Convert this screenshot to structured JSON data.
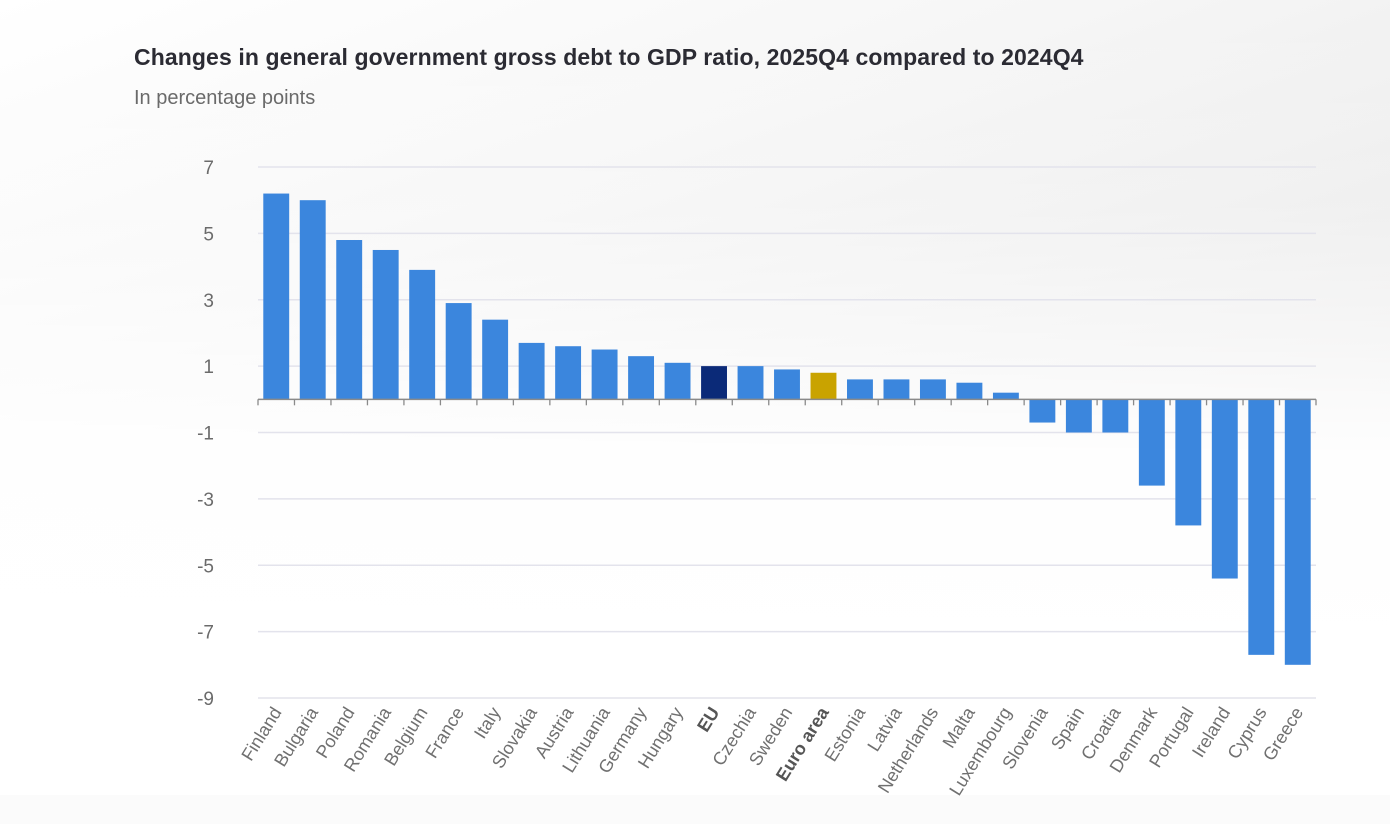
{
  "chart_data": {
    "type": "bar",
    "title": "Changes in general government gross debt to GDP ratio, 2025Q4 compared to 2024Q4",
    "subtitle": "In percentage points",
    "xlabel": "",
    "ylabel": "",
    "ylim": [
      -9,
      7
    ],
    "yticks": [
      7,
      5,
      3,
      1,
      -1,
      -3,
      -5,
      -7,
      -9
    ],
    "grid": true,
    "legend": "none",
    "categories": [
      "Finland",
      "Bulgaria",
      "Poland",
      "Romania",
      "Belgium",
      "France",
      "Italy",
      "Slovakia",
      "Austria",
      "Lithuania",
      "Germany",
      "Hungary",
      "EU",
      "Czechia",
      "Sweden",
      "Euro area",
      "Estonia",
      "Latvia",
      "Netherlands",
      "Malta",
      "Luxembourg",
      "Slovenia",
      "Spain",
      "Croatia",
      "Denmark",
      "Portugal",
      "Ireland",
      "Cyprus",
      "Greece"
    ],
    "values": [
      6.2,
      6.0,
      4.8,
      4.5,
      3.9,
      2.9,
      2.4,
      1.7,
      1.6,
      1.5,
      1.3,
      1.1,
      1.0,
      1.0,
      0.9,
      0.8,
      0.6,
      0.6,
      0.6,
      0.5,
      0.2,
      -0.7,
      -1.0,
      -1.0,
      -2.6,
      -3.8,
      -5.4,
      -7.7,
      -8.0
    ],
    "highlight": {
      "EU": "#0b2a78",
      "Euro area": "#c9a300"
    },
    "bold_categories": [
      "EU",
      "Euro area"
    ],
    "colors": {
      "default_bar": "#3b86dd",
      "gridline": "#e3e3ec",
      "axis": "#8a8a8a"
    }
  }
}
